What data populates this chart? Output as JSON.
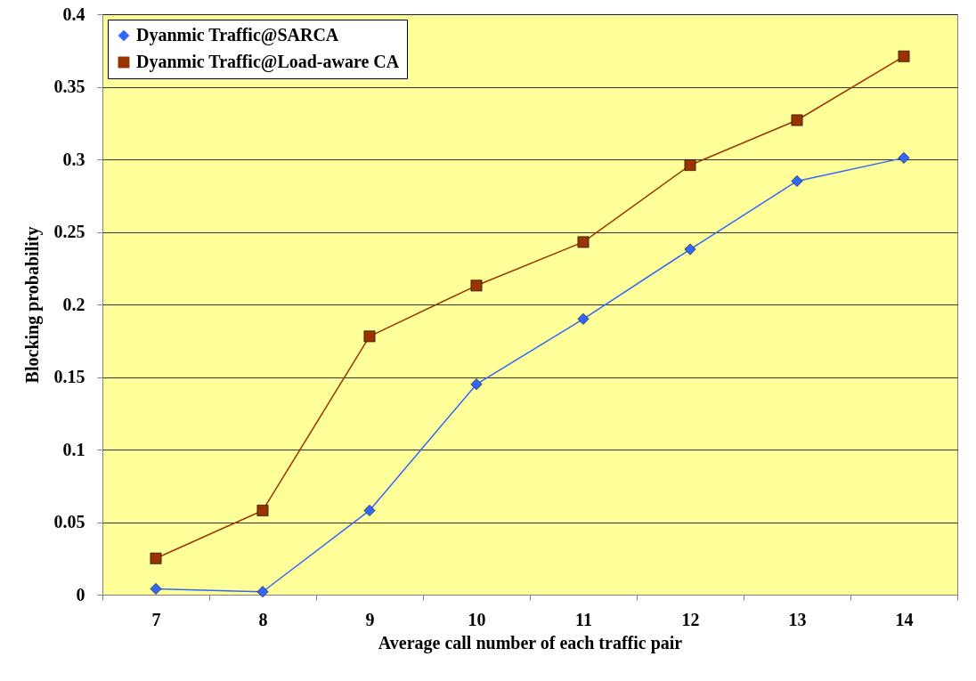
{
  "chart_data": {
    "type": "line",
    "xlabel": "Average call number of each traffic pair",
    "ylabel": "Blocking probability",
    "categories": [
      "7",
      "8",
      "9",
      "10",
      "11",
      "12",
      "13",
      "14"
    ],
    "series": [
      {
        "name": "Dyanmic Traffic@SARCA",
        "color": "#3366ff",
        "marker": "diamond",
        "values": [
          0.004,
          0.002,
          0.058,
          0.145,
          0.19,
          0.238,
          0.285,
          0.301
        ]
      },
      {
        "name": "Dyanmic Traffic@Load-aware CA",
        "color": "#993300",
        "marker": "square",
        "values": [
          0.025,
          0.058,
          0.178,
          0.213,
          0.243,
          0.296,
          0.327,
          0.371
        ]
      }
    ],
    "ylim": [
      0,
      0.4
    ],
    "yticks": [
      0,
      0.05,
      0.1,
      0.15,
      0.2,
      0.25,
      0.3,
      0.35,
      0.4
    ],
    "grid": "y",
    "legend": "top left"
  }
}
